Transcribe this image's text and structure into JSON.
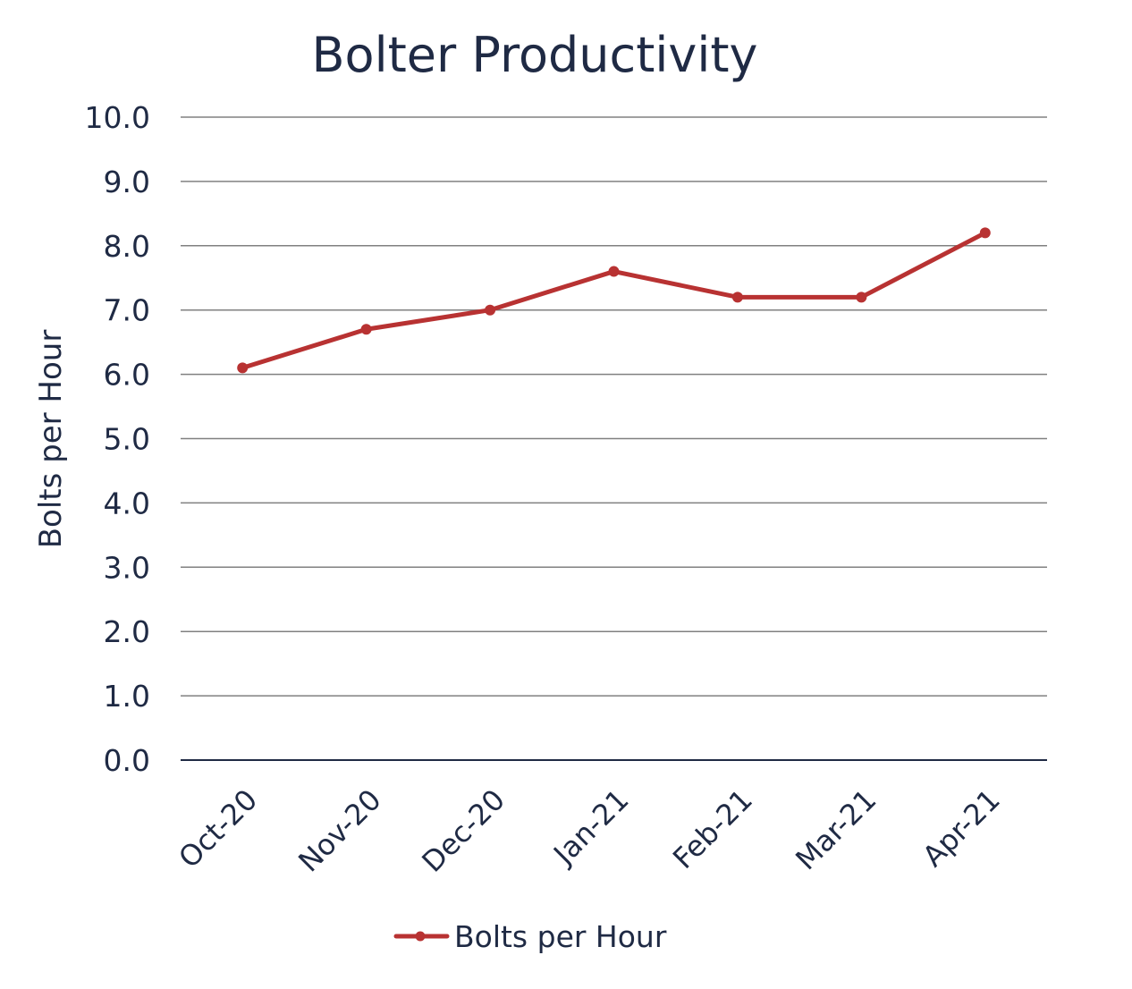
{
  "chart_data": {
    "type": "line",
    "title": "Bolter Productivity",
    "xlabel": "",
    "ylabel": "Bolts per Hour",
    "categories": [
      "Oct-20",
      "Nov-20",
      "Dec-20",
      "Jan-21",
      "Feb-21",
      "Mar-21",
      "Apr-21"
    ],
    "series": [
      {
        "name": "Bolts per Hour",
        "values": [
          6.1,
          6.7,
          7.0,
          7.6,
          7.2,
          7.2,
          8.2
        ],
        "color": "#b83232"
      }
    ],
    "ylim": [
      0,
      10
    ],
    "yticks": [
      "0.0",
      "1.0",
      "2.0",
      "3.0",
      "4.0",
      "5.0",
      "6.0",
      "7.0",
      "8.0",
      "9.0",
      "10.0"
    ],
    "grid": true,
    "legend": "bottom",
    "gridColor": "#808080",
    "axisColor": "#1f2a44",
    "textColor": "#1f2a44"
  }
}
